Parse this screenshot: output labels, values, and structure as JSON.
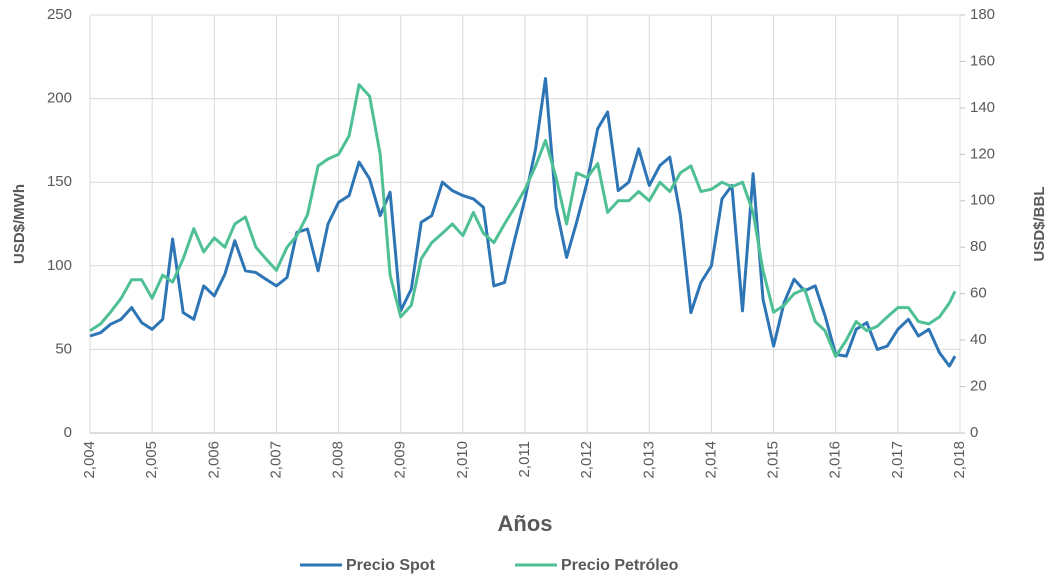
{
  "chart_data": {
    "type": "line",
    "x_label": "Años",
    "y_label": "USD$/MWh",
    "y2_label": "USD$/BBL",
    "x": [
      2004,
      2004.17,
      2004.33,
      2004.5,
      2004.67,
      2004.83,
      2005,
      2005.17,
      2005.33,
      2005.5,
      2005.67,
      2005.83,
      2006,
      2006.17,
      2006.33,
      2006.5,
      2006.67,
      2006.83,
      2007,
      2007.17,
      2007.33,
      2007.5,
      2007.67,
      2007.83,
      2008,
      2008.17,
      2008.33,
      2008.5,
      2008.67,
      2008.83,
      2009,
      2009.17,
      2009.33,
      2009.5,
      2009.67,
      2009.83,
      2010,
      2010.17,
      2010.33,
      2010.5,
      2010.67,
      2010.83,
      2011,
      2011.17,
      2011.33,
      2011.5,
      2011.67,
      2011.83,
      2012,
      2012.17,
      2012.33,
      2012.5,
      2012.67,
      2012.83,
      2013,
      2013.17,
      2013.33,
      2013.5,
      2013.67,
      2013.83,
      2014,
      2014.17,
      2014.33,
      2014.5,
      2014.67,
      2014.83,
      2015,
      2015.17,
      2015.33,
      2015.5,
      2015.67,
      2015.83,
      2016,
      2016.17,
      2016.33,
      2016.5,
      2016.67,
      2016.83,
      2017,
      2017.17,
      2017.33,
      2017.5,
      2017.67,
      2017.83,
      2017.92
    ],
    "series": [
      {
        "name": "Precio Spot",
        "color": "#2e75b6",
        "axis": "y",
        "values": [
          58,
          60,
          65,
          68,
          75,
          66,
          62,
          68,
          116,
          72,
          68,
          88,
          82,
          95,
          115,
          97,
          96,
          92,
          88,
          93,
          120,
          122,
          97,
          125,
          138,
          142,
          162,
          152,
          130,
          144,
          73,
          86,
          126,
          130,
          150,
          145,
          142,
          140,
          135,
          88,
          90,
          115,
          140,
          170,
          212,
          135,
          105,
          126,
          150,
          182,
          192,
          145,
          150,
          170,
          148,
          160,
          165,
          130,
          72,
          90,
          100,
          140,
          148,
          73,
          155,
          80,
          52,
          78,
          92,
          85,
          88,
          70,
          47,
          46,
          62,
          66,
          50,
          52,
          62,
          68,
          58,
          62,
          48,
          40,
          46
        ]
      },
      {
        "name": "Precio Petróleo",
        "color": "#4fbf94",
        "axis": "y2",
        "values": [
          44,
          47,
          52,
          58,
          66,
          66,
          58,
          68,
          65,
          75,
          88,
          78,
          84,
          80,
          90,
          93,
          80,
          75,
          70,
          80,
          85,
          94,
          115,
          118,
          120,
          128,
          150,
          145,
          120,
          68,
          50,
          55,
          75,
          82,
          86,
          90,
          85,
          95,
          86,
          82,
          90,
          97,
          105,
          115,
          126,
          110,
          90,
          112,
          110,
          116,
          95,
          100,
          100,
          104,
          100,
          108,
          104,
          112,
          115,
          104,
          105,
          108,
          106,
          108,
          95,
          70,
          52,
          55,
          60,
          62,
          48,
          44,
          33,
          40,
          48,
          44,
          46,
          50,
          54,
          54,
          48,
          47,
          50,
          56,
          61
        ]
      }
    ],
    "xlim": [
      2004,
      2018
    ],
    "xticks": [
      {
        "value": 2004,
        "label": "2,004"
      },
      {
        "value": 2005,
        "label": "2,005"
      },
      {
        "value": 2006,
        "label": "2,006"
      },
      {
        "value": 2007,
        "label": "2,007"
      },
      {
        "value": 2008,
        "label": "2,008"
      },
      {
        "value": 2009,
        "label": "2,009"
      },
      {
        "value": 2010,
        "label": "2,010"
      },
      {
        "value": 2011,
        "label": "2,011"
      },
      {
        "value": 2012,
        "label": "2,012"
      },
      {
        "value": 2013,
        "label": "2,013"
      },
      {
        "value": 2014,
        "label": "2,014"
      },
      {
        "value": 2015,
        "label": "2,015"
      },
      {
        "value": 2016,
        "label": "2,016"
      },
      {
        "value": 2017,
        "label": "2,017"
      },
      {
        "value": 2018,
        "label": "2,018"
      }
    ],
    "ylim": [
      0,
      250
    ],
    "yticks": [
      0,
      50,
      100,
      150,
      200,
      250
    ],
    "y2lim": [
      0,
      180
    ],
    "y2ticks": [
      0,
      20,
      40,
      60,
      80,
      100,
      120,
      140,
      160,
      180
    ],
    "grid": true,
    "legend": "bottom"
  }
}
